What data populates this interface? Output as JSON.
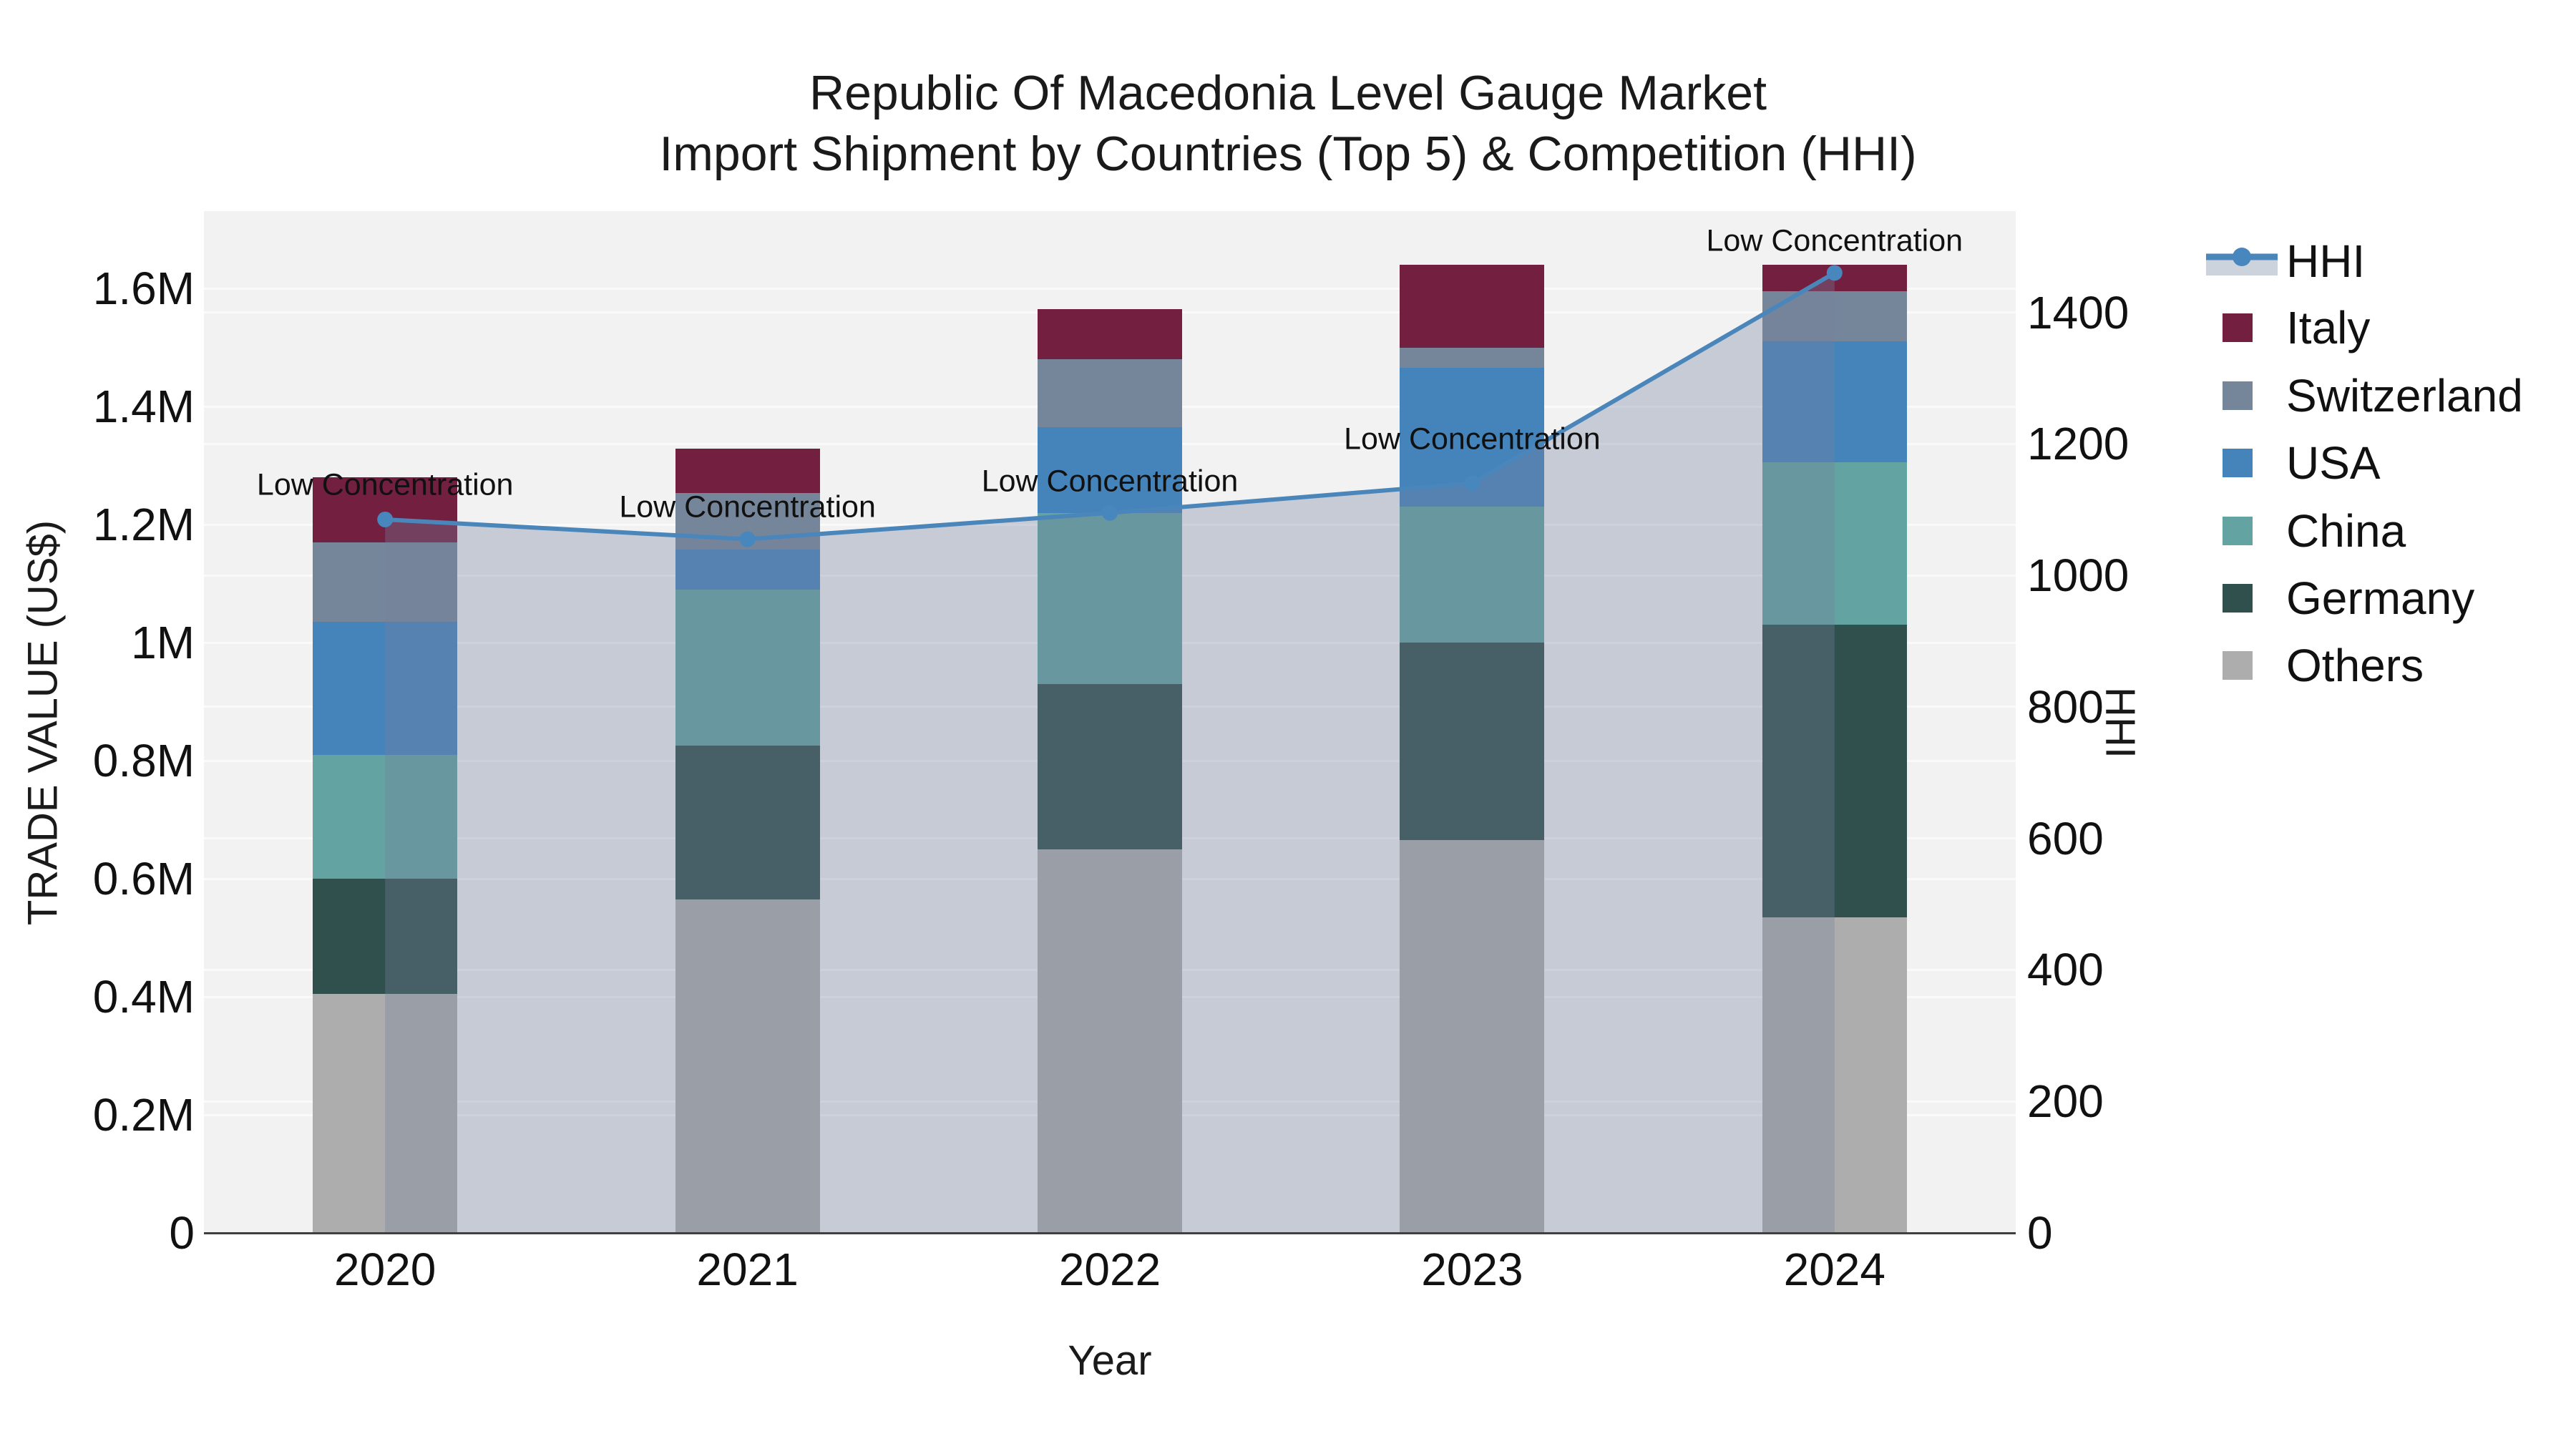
{
  "title": {
    "line1": "Republic Of Macedonia Level Gauge Market",
    "line2": "Import Shipment by Countries (Top 5) & Competition (HHI)"
  },
  "axes": {
    "x": {
      "label": "Year",
      "ticks": [
        "2020",
        "2021",
        "2022",
        "2023",
        "2024"
      ]
    },
    "y_left": {
      "label": "TRADE VALUE (US$)",
      "ticks": [
        {
          "value": 0,
          "label": "0"
        },
        {
          "value": 200000,
          "label": "0.2M"
        },
        {
          "value": 400000,
          "label": "0.4M"
        },
        {
          "value": 600000,
          "label": "0.6M"
        },
        {
          "value": 800000,
          "label": "0.8M"
        },
        {
          "value": 1000000,
          "label": "1M"
        },
        {
          "value": 1200000,
          "label": "1.2M"
        },
        {
          "value": 1400000,
          "label": "1.4M"
        },
        {
          "value": 1600000,
          "label": "1.6M"
        }
      ]
    },
    "y_right": {
      "label": "HHI",
      "ticks": [
        {
          "value": 0,
          "label": "0"
        },
        {
          "value": 200,
          "label": "200"
        },
        {
          "value": 400,
          "label": "400"
        },
        {
          "value": 600,
          "label": "600"
        },
        {
          "value": 800,
          "label": "800"
        },
        {
          "value": 1000,
          "label": "1000"
        },
        {
          "value": 1200,
          "label": "1200"
        },
        {
          "value": 1400,
          "label": "1400"
        }
      ]
    }
  },
  "legend": {
    "items": [
      {
        "name": "HHI",
        "type": "line",
        "color": "#4b86bb"
      },
      {
        "name": "Italy",
        "type": "swatch",
        "color": "#731f40"
      },
      {
        "name": "Switzerland",
        "type": "swatch",
        "color": "#76869a"
      },
      {
        "name": "USA",
        "type": "swatch",
        "color": "#4583bb"
      },
      {
        "name": "China",
        "type": "swatch",
        "color": "#63a3a1"
      },
      {
        "name": "Germany",
        "type": "swatch",
        "color": "#2f504c"
      },
      {
        "name": "Others",
        "type": "swatch",
        "color": "#acadac"
      }
    ]
  },
  "chart_data": {
    "type": "bar",
    "subtype": "stacked-bars-with-line",
    "title": "Republic Of Macedonia Level Gauge Market — Import Shipment by Countries (Top 5) & Competition (HHI)",
    "xlabel": "Year",
    "ylabel_left": "TRADE VALUE (US$)",
    "ylabel_right": "HHI",
    "categories": [
      "2020",
      "2021",
      "2022",
      "2023",
      "2024"
    ],
    "bar_series_bottom_to_top": [
      {
        "name": "Others",
        "color": "#acadac",
        "values": [
          405000,
          565000,
          650000,
          665000,
          535000
        ]
      },
      {
        "name": "Germany",
        "color": "#2f504c",
        "values": [
          195000,
          260000,
          280000,
          335000,
          495000
        ]
      },
      {
        "name": "China",
        "color": "#63a3a1",
        "values": [
          210000,
          265000,
          290000,
          230000,
          275000
        ]
      },
      {
        "name": "USA",
        "color": "#4583bb",
        "values": [
          225000,
          68000,
          145000,
          235000,
          205000
        ]
      },
      {
        "name": "Switzerland",
        "color": "#76869a",
        "values": [
          135000,
          95000,
          115000,
          35000,
          85000
        ]
      },
      {
        "name": "Italy",
        "color": "#731f40",
        "values": [
          110000,
          75000,
          85000,
          140000,
          45000
        ]
      }
    ],
    "bar_totals": [
      1280000,
      1328000,
      1565000,
      1640000,
      1640000
    ],
    "line_series": {
      "name": "HHI",
      "axis": "right",
      "color": "#4b86bb",
      "area_fill": "rgba(116,130,158,0.34)",
      "values": [
        1085,
        1055,
        1095,
        1140,
        1460
      ]
    },
    "annotations": [
      {
        "x": "2020",
        "text": "Low Concentration"
      },
      {
        "x": "2021",
        "text": "Low Concentration"
      },
      {
        "x": "2022",
        "text": "Low Concentration"
      },
      {
        "x": "2023",
        "text": "Low Concentration"
      },
      {
        "x": "2024",
        "text": "Low Concentration"
      }
    ],
    "y_left_range": [
      0,
      1731000
    ],
    "y_right_range": [
      0,
      1554
    ],
    "grid": true,
    "legend_position": "right"
  },
  "colors": {
    "plot_background": "#f2f2f2",
    "gridline": "#fafafa",
    "axis_line": "#404040",
    "text": "#111111",
    "hhi_line": "#4b86bb",
    "hhi_marker": "#4787bd",
    "hhi_area": "rgba(116,130,158,0.34)"
  }
}
